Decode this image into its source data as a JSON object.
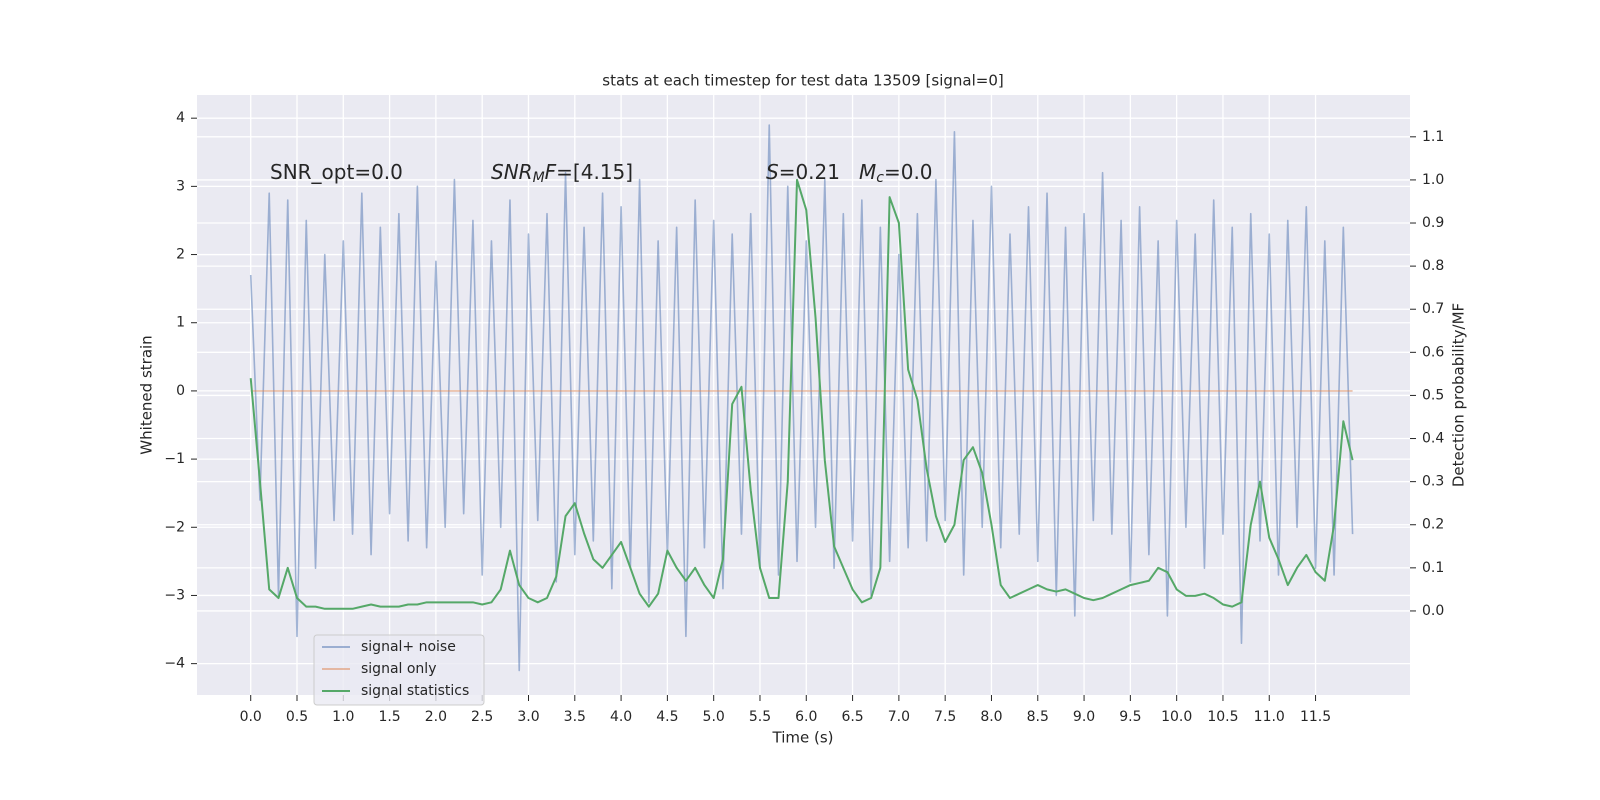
{
  "chart_data": {
    "type": "line",
    "title": "stats at each timestep for test data 13509 [signal=0]",
    "xlabel": "Time (s)",
    "ylabel": "Whitened strain",
    "y2label": "Detection probability/MF",
    "annotations": [
      {
        "parts": [
          {
            "text": "SNR_opt=0.0"
          }
        ]
      },
      {
        "parts": [
          {
            "text": "SNR",
            "italic": true
          },
          {
            "text": "M",
            "italic": true,
            "sub": true
          },
          {
            "text": "F",
            "italic": true
          },
          {
            "text": "=[4.15]"
          }
        ]
      },
      {
        "parts": [
          {
            "text": "S",
            "italic": true
          },
          {
            "text": "=0.21"
          }
        ]
      },
      {
        "parts": [
          {
            "text": "M",
            "italic": true
          },
          {
            "text": "c",
            "italic": true,
            "sub": true
          },
          {
            "text": "=0.0"
          }
        ]
      }
    ],
    "x": [
      0,
      0.1,
      0.2,
      0.3,
      0.4,
      0.5,
      0.6,
      0.7,
      0.8,
      0.9,
      1,
      1.1,
      1.2,
      1.3,
      1.4,
      1.5,
      1.6,
      1.7,
      1.8,
      1.9,
      2,
      2.1,
      2.2,
      2.3,
      2.4,
      2.5,
      2.6,
      2.7,
      2.8,
      2.9,
      3,
      3.1,
      3.2,
      3.3,
      3.4,
      3.5,
      3.6,
      3.7,
      3.8,
      3.9,
      4,
      4.1,
      4.2,
      4.3,
      4.4,
      4.5,
      4.6,
      4.7,
      4.8,
      4.9,
      5,
      5.1,
      5.2,
      5.3,
      5.4,
      5.5,
      5.6,
      5.7,
      5.8,
      5.9,
      6,
      6.1,
      6.2,
      6.3,
      6.4,
      6.5,
      6.6,
      6.7,
      6.8,
      6.9,
      7,
      7.1,
      7.2,
      7.3,
      7.4,
      7.5,
      7.6,
      7.7,
      7.8,
      7.9,
      8,
      8.1,
      8.2,
      8.3,
      8.4,
      8.5,
      8.6,
      8.7,
      8.8,
      8.9,
      9,
      9.1,
      9.2,
      9.3,
      9.4,
      9.5,
      9.6,
      9.7,
      9.8,
      9.9,
      10,
      10.1,
      10.2,
      10.3,
      10.4,
      10.5,
      10.6,
      10.7,
      10.8,
      10.9,
      11,
      11.1,
      11.2,
      11.3,
      11.4,
      11.5,
      11.6,
      11.7,
      11.8,
      11.9
    ],
    "series": [
      {
        "name": "signal+ noise",
        "color": "#4c72b0",
        "opacity": 0.5,
        "axis": "y",
        "values": [
          1.7,
          -1.6,
          2.9,
          -3.0,
          2.8,
          -3.6,
          2.5,
          -2.6,
          2.0,
          -1.9,
          2.2,
          -2.1,
          2.9,
          -2.4,
          2.4,
          -1.8,
          2.6,
          -2.2,
          3.0,
          -2.3,
          1.9,
          -2.0,
          3.1,
          -1.8,
          2.5,
          -2.7,
          2.2,
          -2.0,
          2.8,
          -4.1,
          2.3,
          -1.9,
          2.6,
          -2.8,
          3.2,
          -2.4,
          2.4,
          -2.2,
          2.9,
          -2.9,
          2.7,
          -2.6,
          3.1,
          -3.1,
          2.2,
          -2.4,
          2.4,
          -3.6,
          2.8,
          -2.3,
          2.5,
          -2.9,
          2.3,
          -2.1,
          2.6,
          -2.6,
          3.9,
          -2.7,
          3.0,
          -2.5,
          2.2,
          -2.0,
          3.1,
          -2.6,
          2.6,
          -2.2,
          2.8,
          -3.0,
          2.4,
          -2.5,
          2.0,
          -2.3,
          2.6,
          -2.2,
          3.1,
          -1.9,
          3.8,
          -2.7,
          2.5,
          -2.0,
          3.0,
          -2.3,
          2.3,
          -2.1,
          2.7,
          -2.5,
          2.9,
          -3.0,
          2.4,
          -3.3,
          2.6,
          -1.9,
          3.2,
          -2.1,
          2.5,
          -2.8,
          2.7,
          -2.4,
          2.2,
          -3.3,
          2.5,
          -2.0,
          2.3,
          -2.6,
          2.8,
          -2.1,
          2.4,
          -3.7,
          2.6,
          -2.2,
          2.3,
          -2.7,
          2.5,
          -2.0,
          2.7,
          -2.6,
          2.2,
          -2.7,
          2.4,
          -2.1
        ]
      },
      {
        "name": "signal only",
        "color": "#dd8452",
        "opacity": 0.5,
        "axis": "y",
        "values": [
          0,
          0,
          0,
          0,
          0,
          0,
          0,
          0,
          0,
          0,
          0,
          0,
          0,
          0,
          0,
          0,
          0,
          0,
          0,
          0,
          0,
          0,
          0,
          0,
          0,
          0,
          0,
          0,
          0,
          0,
          0,
          0,
          0,
          0,
          0,
          0,
          0,
          0,
          0,
          0,
          0,
          0,
          0,
          0,
          0,
          0,
          0,
          0,
          0,
          0,
          0,
          0,
          0,
          0,
          0,
          0,
          0,
          0,
          0,
          0,
          0,
          0,
          0,
          0,
          0,
          0,
          0,
          0,
          0,
          0,
          0,
          0,
          0,
          0,
          0,
          0,
          0,
          0,
          0,
          0,
          0,
          0,
          0,
          0,
          0,
          0,
          0,
          0,
          0,
          0,
          0,
          0,
          0,
          0,
          0,
          0,
          0,
          0,
          0,
          0,
          0,
          0,
          0,
          0,
          0,
          0,
          0,
          0,
          0,
          0,
          0,
          0,
          0,
          0,
          0,
          0,
          0,
          0,
          0,
          0
        ]
      },
      {
        "name": "signal statistics",
        "color": "#55a868",
        "opacity": 1,
        "axis": "y2",
        "values": [
          0.54,
          0.3,
          0.05,
          0.03,
          0.1,
          0.03,
          0.01,
          0.01,
          0.005,
          0.005,
          0.005,
          0.005,
          0.01,
          0.015,
          0.01,
          0.01,
          0.01,
          0.015,
          0.015,
          0.02,
          0.02,
          0.02,
          0.02,
          0.02,
          0.02,
          0.015,
          0.02,
          0.05,
          0.14,
          0.06,
          0.03,
          0.02,
          0.03,
          0.08,
          0.22,
          0.25,
          0.18,
          0.12,
          0.1,
          0.13,
          0.16,
          0.1,
          0.04,
          0.01,
          0.04,
          0.14,
          0.1,
          0.07,
          0.1,
          0.06,
          0.03,
          0.12,
          0.48,
          0.52,
          0.28,
          0.1,
          0.03,
          0.03,
          0.3,
          1.0,
          0.93,
          0.68,
          0.35,
          0.15,
          0.1,
          0.05,
          0.02,
          0.03,
          0.1,
          0.96,
          0.9,
          0.56,
          0.49,
          0.33,
          0.22,
          0.16,
          0.2,
          0.35,
          0.38,
          0.32,
          0.2,
          0.06,
          0.03,
          0.04,
          0.05,
          0.06,
          0.05,
          0.045,
          0.05,
          0.04,
          0.03,
          0.025,
          0.03,
          0.04,
          0.05,
          0.06,
          0.065,
          0.07,
          0.1,
          0.09,
          0.05,
          0.035,
          0.035,
          0.04,
          0.03,
          0.015,
          0.01,
          0.02,
          0.2,
          0.3,
          0.17,
          0.12,
          0.06,
          0.1,
          0.13,
          0.09,
          0.07,
          0.2,
          0.44,
          0.35
        ]
      }
    ],
    "xlim": [
      -0.58,
      12.52
    ],
    "ylim": [
      -4.46,
      4.34
    ],
    "y2lim": [
      -0.195,
      1.197
    ],
    "xticks": [
      {
        "value": 0,
        "label": "0.0"
      },
      {
        "value": 0.5,
        "label": "0.5"
      },
      {
        "value": 1,
        "label": "1.0"
      },
      {
        "value": 1.5,
        "label": "1.5"
      },
      {
        "value": 2,
        "label": "2.0"
      },
      {
        "value": 2.5,
        "label": "2.5"
      },
      {
        "value": 3,
        "label": "3.0"
      },
      {
        "value": 3.5,
        "label": "3.5"
      },
      {
        "value": 4,
        "label": "4.0"
      },
      {
        "value": 4.5,
        "label": "4.5"
      },
      {
        "value": 5,
        "label": "5.0"
      },
      {
        "value": 5.5,
        "label": "5.5"
      },
      {
        "value": 6,
        "label": "6.0"
      },
      {
        "value": 6.5,
        "label": "6.5"
      },
      {
        "value": 7,
        "label": "7.0"
      },
      {
        "value": 7.5,
        "label": "7.5"
      },
      {
        "value": 8,
        "label": "8.0"
      },
      {
        "value": 8.5,
        "label": "8.5"
      },
      {
        "value": 9,
        "label": "9.0"
      },
      {
        "value": 9.5,
        "label": "9.5"
      },
      {
        "value": 10,
        "label": "10.0"
      },
      {
        "value": 10.5,
        "label": "10.5"
      },
      {
        "value": 11,
        "label": "11.0"
      },
      {
        "value": 11.5,
        "label": "11.5"
      }
    ],
    "yticks": [
      {
        "value": -4,
        "label": "−4"
      },
      {
        "value": -3,
        "label": "−3"
      },
      {
        "value": -2,
        "label": "−2"
      },
      {
        "value": -1,
        "label": "−1"
      },
      0,
      1,
      2,
      3,
      4
    ],
    "y2ticks": [
      {
        "value": 0,
        "label": "0.0"
      },
      {
        "value": 0.1,
        "label": "0.1"
      },
      {
        "value": 0.2,
        "label": "0.2"
      },
      {
        "value": 0.3,
        "label": "0.3"
      },
      {
        "value": 0.4,
        "label": "0.4"
      },
      {
        "value": 0.5,
        "label": "0.5"
      },
      {
        "value": 0.6,
        "label": "0.6"
      },
      {
        "value": 0.7,
        "label": "0.7"
      },
      {
        "value": 0.8,
        "label": "0.8"
      },
      {
        "value": 0.9,
        "label": "0.9"
      },
      {
        "value": 1,
        "label": "1.0"
      },
      {
        "value": 1.1,
        "label": "1.1"
      }
    ],
    "grid": true,
    "legend": "lower left"
  }
}
